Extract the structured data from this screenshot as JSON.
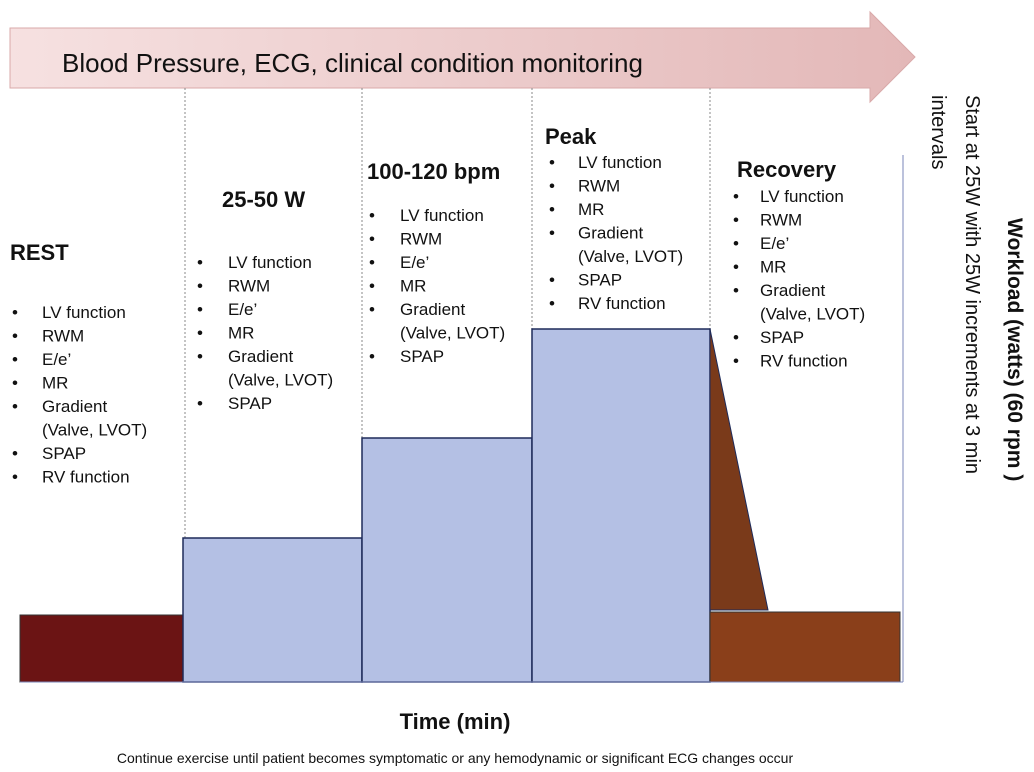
{
  "banner": "Blood Pressure, ECG, clinical condition monitoring",
  "stages": [
    {
      "title": "REST",
      "items": [
        [
          "LV function"
        ],
        [
          "RWM"
        ],
        [
          "E/e’"
        ],
        [
          "MR"
        ],
        [
          "Gradient",
          "(Valve, LVOT)"
        ],
        [
          "SPAP"
        ],
        [
          "RV function"
        ]
      ]
    },
    {
      "title": "25-50 W",
      "items": [
        [
          "LV function"
        ],
        [
          "RWM"
        ],
        [
          "E/e’"
        ],
        [
          "MR"
        ],
        [
          "Gradient",
          "(Valve, LVOT)"
        ],
        [
          "SPAP"
        ]
      ]
    },
    {
      "title": "100-120 bpm",
      "items": [
        [
          "LV function"
        ],
        [
          "RWM"
        ],
        [
          "E/e’"
        ],
        [
          "MR"
        ],
        [
          "Gradient",
          "(Valve, LVOT)"
        ],
        [
          "SPAP"
        ]
      ]
    },
    {
      "title": "Peak",
      "items": [
        [
          "LV function"
        ],
        [
          "RWM"
        ],
        [
          "MR"
        ],
        [
          "Gradient",
          "(Valve, LVOT)"
        ],
        [
          "SPAP"
        ],
        [
          "RV function"
        ]
      ]
    },
    {
      "title": "Recovery",
      "items": [
        [
          "LV function"
        ],
        [
          "RWM"
        ],
        [
          "E/e’"
        ],
        [
          "MR"
        ],
        [
          "Gradient",
          "(Valve, LVOT)"
        ],
        [
          "SPAP"
        ],
        [
          "RV function"
        ]
      ]
    }
  ],
  "y_axis_label": "Workload (watts) (60 rpm )",
  "y_axis_note": [
    "Start at 25W with 25W increments at 3 min",
    "intervals"
  ],
  "x_axis_label": "Time (min)",
  "footnote": "Continue exercise until patient becomes symptomatic or any hemodynamic or significant ECG changes occur"
}
